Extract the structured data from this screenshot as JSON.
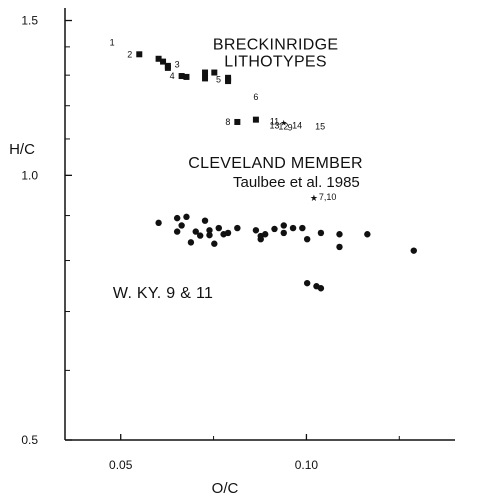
{
  "chart_data": {
    "type": "scatter",
    "xlabel": "O/C",
    "ylabel": "H/C",
    "xlim": [
      0.035,
      0.14
    ],
    "ylim": [
      0.5,
      1.55
    ],
    "y_scale": "log",
    "grid": false,
    "x_ticks": [
      {
        "value": 0.05,
        "label": "0.05"
      },
      {
        "value": 0.1,
        "label": "0.10"
      }
    ],
    "y_ticks": [
      {
        "value": 0.5,
        "label": "0.5"
      },
      {
        "value": 1.0,
        "label": "1.0"
      },
      {
        "value": 1.5,
        "label": "1.5"
      }
    ],
    "annotations": [
      {
        "text": "BRECKINRIDGE",
        "x": 0.0917,
        "y": 1.39
      },
      {
        "text": "LITHOTYPES",
        "x": 0.0917,
        "y": 1.33
      },
      {
        "text": "CLEVELAND MEMBER",
        "x": 0.0917,
        "y": 1.02
      },
      {
        "text": "Taulbee et al. 1985",
        "x": 0.0973,
        "y": 0.97
      },
      {
        "text": "W. KY. 9 & 11",
        "x": 0.0614,
        "y": 0.725
      }
    ],
    "series": [
      {
        "name": "BRECKINRIDGE LITHOTYPES",
        "marker": "square",
        "points": [
          {
            "x": 0.055,
            "y": 1.373,
            "label": "2"
          },
          {
            "x": 0.0602,
            "y": 1.357
          },
          {
            "x": 0.0614,
            "y": 1.347
          },
          {
            "x": 0.0627,
            "y": 1.332
          },
          {
            "x": 0.0627,
            "y": 1.325
          },
          {
            "x": 0.0664,
            "y": 1.297,
            "label": "4"
          },
          {
            "x": 0.0677,
            "y": 1.294
          },
          {
            "x": 0.0727,
            "y": 1.309
          },
          {
            "x": 0.0752,
            "y": 1.309
          },
          {
            "x": 0.0727,
            "y": 1.289
          },
          {
            "x": 0.0789,
            "y": 1.291
          },
          {
            "x": 0.0789,
            "y": 1.285,
            "label": "5"
          },
          {
            "x": 0.0789,
            "y": 1.28
          },
          {
            "x": 0.0814,
            "y": 1.15,
            "label": "8"
          },
          {
            "x": 0.0864,
            "y": 1.157
          }
        ],
        "labels_only": [
          {
            "x": 0.0477,
            "y": 1.416,
            "label": "1"
          },
          {
            "x": 0.0652,
            "y": 1.337,
            "label": "3"
          },
          {
            "x": 0.0864,
            "y": 1.227,
            "label": "6"
          },
          {
            "x": 0.0914,
            "y": 1.152,
            "label": "11"
          },
          {
            "x": 0.0914,
            "y": 1.139,
            "label": "13"
          },
          {
            "x": 0.0938,
            "y": 1.136,
            "label": "12"
          },
          {
            "x": 0.0956,
            "y": 1.133,
            "label": "9"
          },
          {
            "x": 0.0975,
            "y": 1.139,
            "label": "14"
          },
          {
            "x": 0.1037,
            "y": 1.136,
            "label": "15"
          }
        ],
        "stars": [
          {
            "x": 0.0939,
            "y": 1.152
          }
        ]
      },
      {
        "name": "CLEVELAND MEMBER Taulbee et al. 1985",
        "marker": "star",
        "points": [
          {
            "x": 0.102,
            "y": 0.945,
            "label": "7,10"
          }
        ]
      },
      {
        "name": "W. KY. 9 & 11",
        "marker": "circle",
        "points": [
          {
            "x": 0.0602,
            "y": 0.883
          },
          {
            "x": 0.0652,
            "y": 0.894
          },
          {
            "x": 0.0677,
            "y": 0.897
          },
          {
            "x": 0.0727,
            "y": 0.888
          },
          {
            "x": 0.0664,
            "y": 0.877
          },
          {
            "x": 0.0739,
            "y": 0.866
          },
          {
            "x": 0.0764,
            "y": 0.871
          },
          {
            "x": 0.0814,
            "y": 0.871
          },
          {
            "x": 0.0864,
            "y": 0.866
          },
          {
            "x": 0.0914,
            "y": 0.869
          },
          {
            "x": 0.0939,
            "y": 0.877
          },
          {
            "x": 0.0964,
            "y": 0.871
          },
          {
            "x": 0.0989,
            "y": 0.871
          },
          {
            "x": 0.0652,
            "y": 0.863
          },
          {
            "x": 0.0702,
            "y": 0.863
          },
          {
            "x": 0.0714,
            "y": 0.854
          },
          {
            "x": 0.0739,
            "y": 0.855
          },
          {
            "x": 0.0777,
            "y": 0.857
          },
          {
            "x": 0.0789,
            "y": 0.86
          },
          {
            "x": 0.0877,
            "y": 0.853
          },
          {
            "x": 0.0889,
            "y": 0.857
          },
          {
            "x": 0.0939,
            "y": 0.86
          },
          {
            "x": 0.1039,
            "y": 0.86
          },
          {
            "x": 0.1089,
            "y": 0.857
          },
          {
            "x": 0.1164,
            "y": 0.857
          },
          {
            "x": 0.0689,
            "y": 0.839
          },
          {
            "x": 0.0752,
            "y": 0.836
          },
          {
            "x": 0.0877,
            "y": 0.846
          },
          {
            "x": 0.1002,
            "y": 0.846
          },
          {
            "x": 0.1089,
            "y": 0.829
          },
          {
            "x": 0.1289,
            "y": 0.821
          },
          {
            "x": 0.1002,
            "y": 0.754
          },
          {
            "x": 0.1027,
            "y": 0.748
          },
          {
            "x": 0.1039,
            "y": 0.744
          }
        ]
      }
    ]
  }
}
